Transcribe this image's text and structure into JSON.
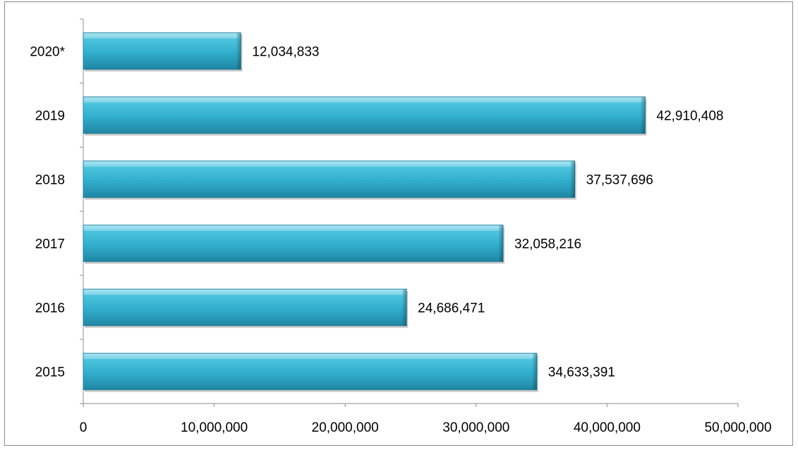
{
  "chart_data": {
    "type": "bar",
    "orientation": "horizontal",
    "title": "",
    "xlabel": "",
    "ylabel": "",
    "categories": [
      "2020*",
      "2019",
      "2018",
      "2017",
      "2016",
      "2015"
    ],
    "values": [
      12034833,
      42910408,
      37537696,
      32058216,
      24686471,
      34633391
    ],
    "data_labels": [
      "12,034,833",
      "42,910,408",
      "37,537,696",
      "32,058,216",
      "24,686,471",
      "34,633,391"
    ],
    "xlim": [
      0,
      50000000
    ],
    "x_ticks": [
      0,
      10000000,
      20000000,
      30000000,
      40000000,
      50000000
    ],
    "x_tick_labels": [
      "0",
      "10,000,000",
      "20,000,000",
      "30,000,000",
      "40,000,000",
      "50,000,000"
    ],
    "grid": false,
    "legend": "none",
    "bar_color": "#35b3d1"
  }
}
